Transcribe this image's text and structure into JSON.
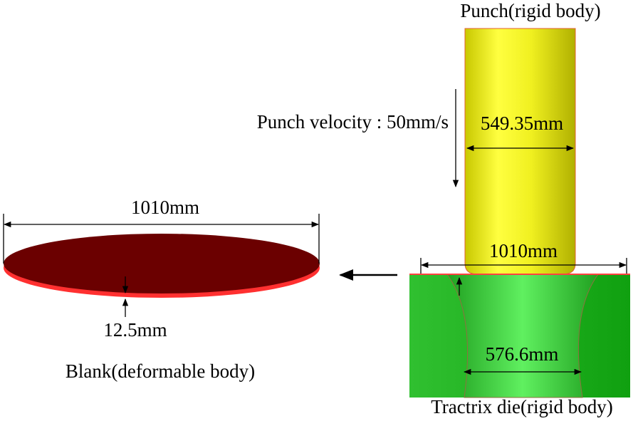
{
  "punch": {
    "label": "Punch(rigid body)",
    "velocity": "Punch velocity : 50mm/s",
    "diameter": "549.35mm"
  },
  "blank": {
    "label": "Blank(deformable body)",
    "diameter": "1010mm",
    "thickness": "12.5mm"
  },
  "die": {
    "label": "Tractrix die(rigid body)",
    "outer_diameter": "1010mm",
    "inner_diameter": "576.6mm"
  }
}
